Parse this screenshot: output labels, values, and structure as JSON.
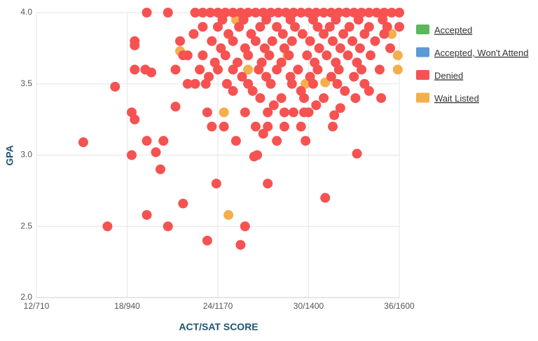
{
  "chart_data": {
    "type": "scatter",
    "xlabel": "ACT/SAT SCORE",
    "ylabel": "GPA",
    "xlim": [
      12,
      36
    ],
    "ylim": [
      2,
      4
    ],
    "xticks": [
      {
        "value": 12,
        "label": "12/710"
      },
      {
        "value": 18,
        "label": "18/940"
      },
      {
        "value": 24,
        "label": "24/1170"
      },
      {
        "value": 30,
        "label": "30/1400"
      },
      {
        "value": 36,
        "label": "36/1600"
      }
    ],
    "yticks": [
      {
        "value": 2,
        "label": "2.0"
      },
      2.5,
      {
        "value": 3,
        "label": "3.0"
      },
      3.5,
      {
        "value": 4,
        "label": "4.0"
      }
    ],
    "grid": true,
    "legend": "right",
    "series": [
      {
        "name": "Accepted",
        "color": "#5cb85c",
        "x": [],
        "values": []
      },
      {
        "name": "Accepted, Won't Attend",
        "color": "#5b9bd5",
        "x": [],
        "values": []
      },
      {
        "name": "Denied",
        "color": "#f65252",
        "x": [
          15.1,
          16.7,
          17.2,
          18.3,
          18.3,
          18.5,
          18.5,
          18.5,
          18.5,
          19.2,
          19.6,
          19.3,
          19.3,
          19.3,
          19.9,
          20.2,
          20.4,
          20.7,
          20.7,
          21.2,
          21.7,
          21.2,
          21.5,
          21.7,
          23.3,
          23.9,
          23.3,
          23.6,
          24.4,
          25.8,
          25.5,
          25.2,
          25.8,
          26.4,
          26.6,
          27.3,
          26.5,
          27,
          27.3,
          27.9,
          28.4,
          29.8,
          31.1,
          31.6,
          31.7,
          32.1,
          33.2,
          34.8,
          29.5,
          30.0,
          22.5,
          23,
          23.5,
          24,
          24.5,
          25,
          25.5,
          26,
          26.5,
          27,
          27.5,
          28,
          28.5,
          29,
          29.5,
          30,
          30.5,
          31,
          31.5,
          32,
          32.5,
          33,
          33.5,
          34,
          34.5,
          35,
          35.5,
          36,
          24.3,
          25.7,
          27.2,
          28.8,
          30.3,
          31.8,
          33.3,
          34.9,
          23,
          24,
          25.4,
          26.8,
          27.9,
          29.1,
          30.6,
          31.4,
          32.7,
          34,
          35.2,
          36,
          22.4,
          24.7,
          26.2,
          28.3,
          29.6,
          31,
          32.3,
          33.7,
          35,
          23.6,
          25,
          26.5,
          27.6,
          28.9,
          30.1,
          31.6,
          32.9,
          34.4,
          24.2,
          25.8,
          27.1,
          28.4,
          30.7,
          32.1,
          33.4,
          35.4,
          22,
          23,
          24.5,
          26,
          27.4,
          28.7,
          29.9,
          31.2,
          32.6,
          34.1,
          23.8,
          25.3,
          26.9,
          28.2,
          30.4,
          31.8,
          33.2,
          22.8,
          24,
          25,
          26.7,
          27.9,
          29.3,
          30.6,
          32,
          33.5,
          34.7,
          23.4,
          25.6,
          27.2,
          28.8,
          30.1,
          31.5,
          33,
          22,
          22.5,
          23.2,
          24.6,
          26,
          27.5,
          28.9,
          30.3,
          31.9,
          33.7,
          25,
          26.3,
          29.5,
          32.4,
          34,
          26.8,
          28.2,
          29.7,
          31,
          33.1,
          27.7,
          30.5,
          27.3,
          28.4,
          29,
          29.7
        ],
        "values": [
          3.09,
          2.5,
          3.48,
          3.3,
          3.0,
          3.25,
          3.8,
          3.77,
          3.6,
          3.6,
          3.58,
          4.0,
          3.1,
          2.58,
          3.02,
          2.9,
          3.1,
          4.0,
          2.5,
          3.34,
          2.66,
          3.6,
          3.8,
          3.7,
          2.4,
          2.8,
          3.3,
          3.2,
          3.2,
          2.5,
          2.37,
          3.1,
          3.3,
          2.99,
          3.0,
          2.8,
          3.2,
          3.15,
          3.2,
          3.1,
          3.2,
          3.1,
          2.7,
          3.2,
          3.28,
          3.33,
          3.01,
          3.4,
          3.2,
          3.3,
          4,
          4,
          4,
          4,
          4,
          4,
          4,
          4,
          4,
          4,
          4,
          4,
          4,
          4,
          4,
          4,
          4,
          4,
          4,
          4,
          4,
          4,
          4,
          4,
          4,
          4,
          4,
          4,
          3.95,
          3.95,
          3.95,
          3.95,
          3.95,
          3.95,
          3.95,
          3.95,
          3.9,
          3.9,
          3.9,
          3.9,
          3.9,
          3.9,
          3.9,
          3.9,
          3.9,
          3.9,
          3.9,
          3.9,
          3.85,
          3.85,
          3.85,
          3.85,
          3.85,
          3.85,
          3.85,
          3.85,
          3.85,
          3.8,
          3.8,
          3.8,
          3.8,
          3.8,
          3.8,
          3.8,
          3.8,
          3.8,
          3.75,
          3.75,
          3.75,
          3.75,
          3.75,
          3.75,
          3.75,
          3.75,
          3.7,
          3.7,
          3.7,
          3.7,
          3.7,
          3.7,
          3.7,
          3.7,
          3.7,
          3.7,
          3.65,
          3.65,
          3.65,
          3.65,
          3.65,
          3.65,
          3.65,
          3.6,
          3.6,
          3.6,
          3.6,
          3.6,
          3.6,
          3.6,
          3.6,
          3.6,
          3.6,
          3.55,
          3.55,
          3.55,
          3.55,
          3.55,
          3.55,
          3.55,
          3.5,
          3.5,
          3.5,
          3.5,
          3.5,
          3.5,
          3.5,
          3.5,
          3.5,
          3.5,
          3.45,
          3.45,
          3.45,
          3.45,
          3.45,
          3.4,
          3.4,
          3.4,
          3.4,
          3.4,
          3.35,
          3.35,
          3.3,
          3.3,
          3.3,
          3.3
        ]
      },
      {
        "name": "Wait Listed",
        "color": "#f5ae4c",
        "x": [
          24.4,
          24.7,
          25.2,
          21.5,
          35.9,
          35.9,
          29.8,
          26.0,
          28.6,
          35.5,
          31.1
        ],
        "values": [
          3.3,
          2.58,
          3.95,
          3.73,
          3.7,
          3.6,
          3.5,
          3.6,
          3.7,
          3.85,
          3.51
        ]
      }
    ]
  }
}
